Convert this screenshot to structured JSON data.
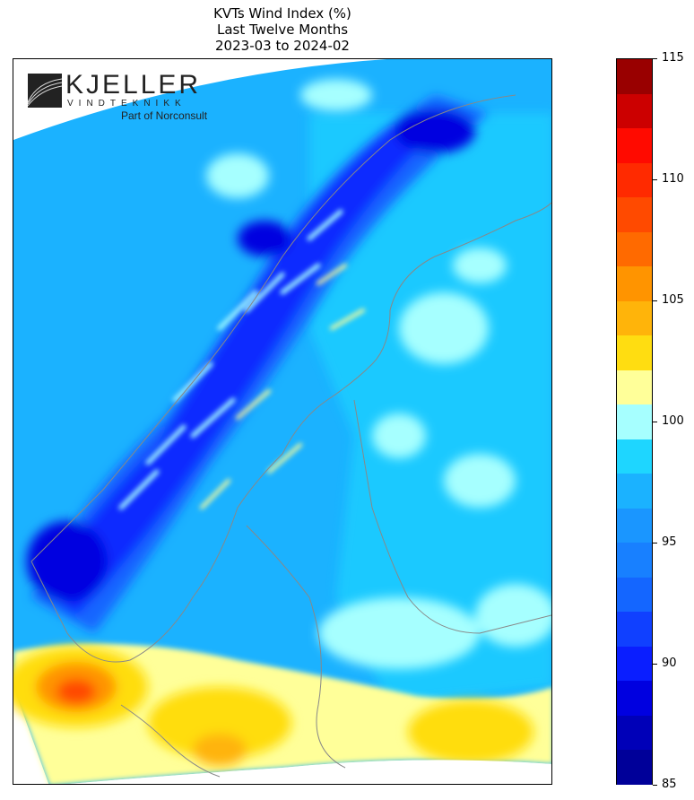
{
  "chart_data": {
    "type": "heatmap",
    "title": "KVTs Wind Index (%)",
    "subtitle_line1": "Last Twelve Months",
    "subtitle_line2": "2023-03 to 2024-02",
    "region": "Scandinavia and Baltic region",
    "colorbar": {
      "range": [
        85,
        115
      ],
      "step": 1.5,
      "ticks": [
        "85",
        "90",
        "95",
        "100",
        "105",
        "110",
        "115"
      ],
      "colors": [
        "#000099",
        "#0000b8",
        "#0000e0",
        "#0a1eff",
        "#1040ff",
        "#1466ff",
        "#1880ff",
        "#1a96ff",
        "#1bb2ff",
        "#1ed6ff",
        "#a6ffff",
        "#ffff99",
        "#ffdd11",
        "#ffb40a",
        "#ff9400",
        "#ff6a00",
        "#ff4a00",
        "#ff2a00",
        "#ff0a00",
        "#cc0000",
        "#990000"
      ]
    }
  },
  "logo": {
    "name": "KJELLER",
    "sub": "VINDTEKNIKK",
    "tagline": "Part of Norconsult"
  }
}
